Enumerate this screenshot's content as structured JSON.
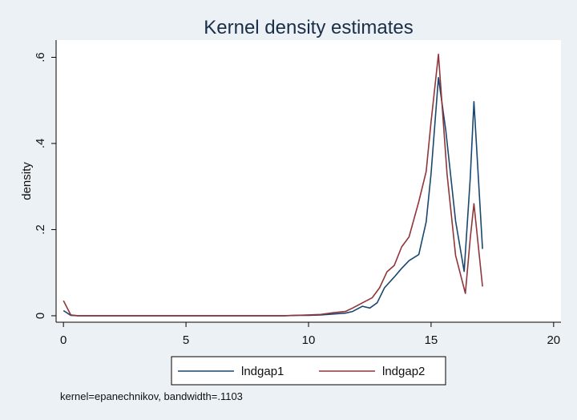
{
  "chart_data": {
    "type": "line",
    "title": "Kernel density estimates",
    "xlabel": "",
    "ylabel": "density",
    "xlim": [
      -0.3,
      20.3
    ],
    "ylim": [
      -0.015,
      0.64
    ],
    "xticks": [
      0,
      5,
      10,
      15,
      20
    ],
    "xtick_labels": [
      "0",
      "5",
      "10",
      "15",
      "20"
    ],
    "yticks": [
      0,
      0.2,
      0.4,
      0.6
    ],
    "ytick_labels": [
      "0",
      ".2",
      ".4",
      ".6"
    ],
    "grid": false,
    "legend_position": "bottom",
    "note": "kernel=epanechnikov, bandwidth=.1103",
    "series": [
      {
        "name": "lndgap1",
        "color": "#1a476f",
        "x": [
          0,
          0.3,
          0.6,
          2,
          4,
          6,
          8,
          9,
          9.5,
          10,
          10.5,
          11,
          11.5,
          11.8,
          12.2,
          12.5,
          12.8,
          13.1,
          13.5,
          13.8,
          14.1,
          14.5,
          14.8,
          15.0,
          15.3,
          15.6,
          16.0,
          16.35,
          16.6,
          16.75,
          17.1
        ],
        "y": [
          0.012,
          0.001,
          0.0,
          0.0,
          0.0,
          0.0,
          0.0,
          0.0,
          0.001,
          0.001,
          0.002,
          0.004,
          0.006,
          0.01,
          0.022,
          0.018,
          0.03,
          0.065,
          0.09,
          0.11,
          0.128,
          0.142,
          0.218,
          0.33,
          0.553,
          0.43,
          0.22,
          0.103,
          0.32,
          0.497,
          0.155
        ]
      },
      {
        "name": "lndgap2",
        "color": "#90353b",
        "x": [
          0,
          0.3,
          0.6,
          2,
          4,
          6,
          8,
          9,
          9.5,
          10,
          10.5,
          11,
          11.5,
          11.8,
          12.2,
          12.6,
          12.9,
          13.2,
          13.5,
          13.8,
          14.1,
          14.5,
          14.8,
          15.0,
          15.3,
          15.65,
          16.0,
          16.4,
          16.6,
          16.75,
          17.1
        ],
        "y": [
          0.035,
          0.002,
          0.0,
          0.0,
          0.0,
          0.0,
          0.0,
          0.0,
          0.001,
          0.002,
          0.003,
          0.007,
          0.01,
          0.018,
          0.03,
          0.042,
          0.065,
          0.102,
          0.117,
          0.16,
          0.183,
          0.265,
          0.335,
          0.45,
          0.607,
          0.33,
          0.14,
          0.052,
          0.18,
          0.26,
          0.068
        ]
      }
    ]
  }
}
